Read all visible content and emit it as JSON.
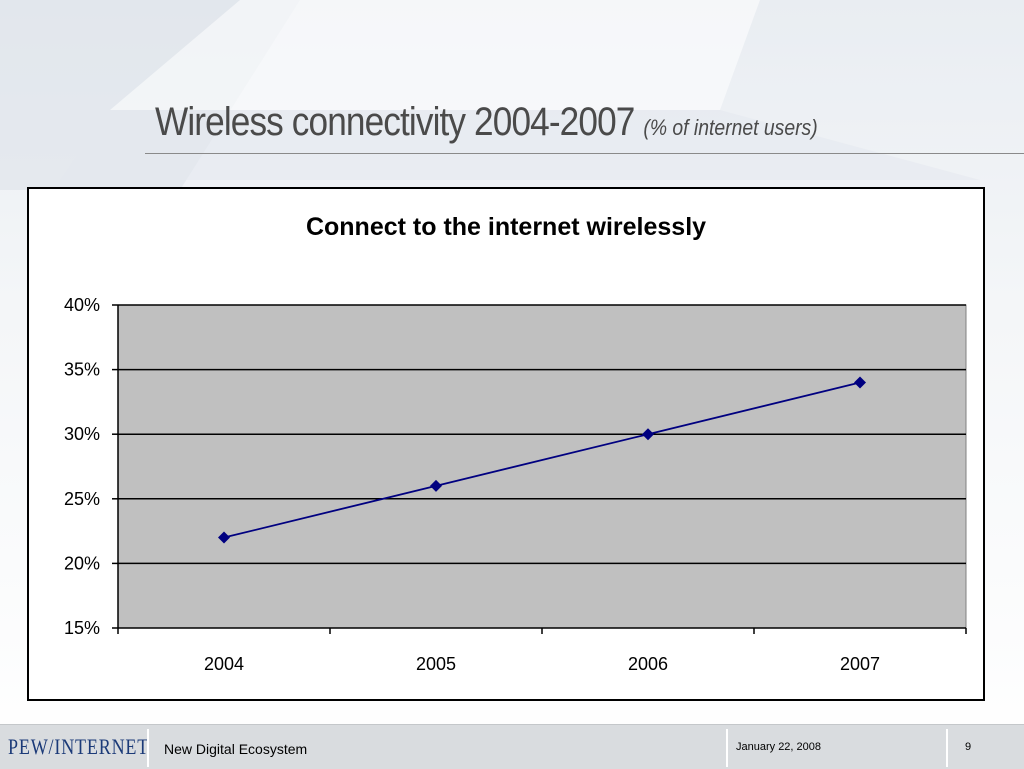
{
  "slide": {
    "title": "Wireless connectivity 2004-2007",
    "subtitle": "(% of internet users)"
  },
  "footer": {
    "logo": "PEW/INTERNET",
    "name": "New Digital Ecosystem",
    "date": "January 22, 2008",
    "page": "9"
  },
  "colors": {
    "plot_background": "#c0c0c0",
    "series_line": "#000080",
    "footer_text": "#1b3a78"
  },
  "chart_data": {
    "type": "line",
    "title": "Connect to the internet wirelessly",
    "xlabel": "",
    "ylabel": "",
    "categories": [
      "2004",
      "2005",
      "2006",
      "2007"
    ],
    "series": [
      {
        "values": [
          22,
          26,
          30,
          34
        ]
      }
    ],
    "ylim": [
      15,
      40
    ],
    "yticks": [
      "15%",
      "20%",
      "25%",
      "30%",
      "35%",
      "40%"
    ],
    "ytick_values": [
      15,
      20,
      25,
      30,
      35,
      40
    ],
    "grid": true,
    "legend": "none",
    "marker": "diamond"
  }
}
